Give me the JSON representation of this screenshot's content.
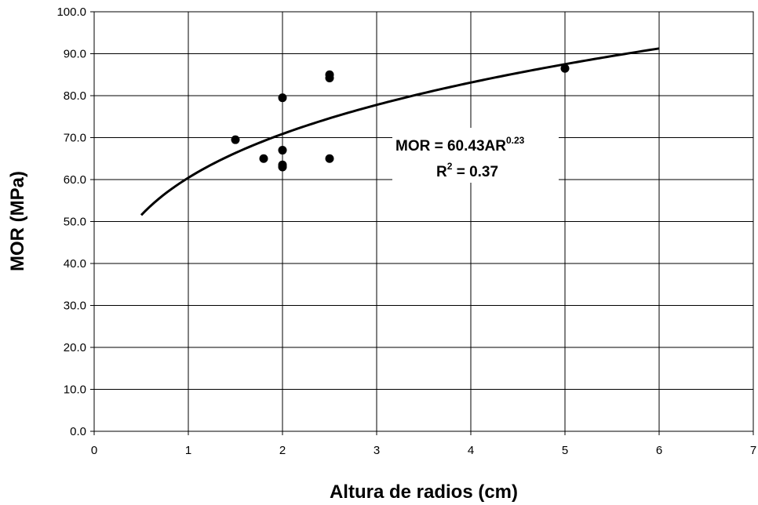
{
  "chart_data": {
    "type": "scatter",
    "title": "",
    "xlabel": "Altura de radios (cm)",
    "ylabel": "MOR (MPa)",
    "xlim": [
      0,
      7
    ],
    "ylim": [
      0,
      100
    ],
    "x_ticks": [
      "0",
      "1",
      "2",
      "3",
      "4",
      "5",
      "6",
      "7"
    ],
    "y_ticks": [
      "0.0",
      "10.0",
      "20.0",
      "30.0",
      "40.0",
      "50.0",
      "60.0",
      "70.0",
      "80.0",
      "90.0",
      "100.0"
    ],
    "grid": true,
    "legend": "none",
    "series": [
      {
        "type": "scatter",
        "marker_color": "#000000",
        "x": [
          1.5,
          1.8,
          2.0,
          2.0,
          2.0,
          2.0,
          2.5,
          2.5,
          2.5,
          5.0
        ],
        "y": [
          69.5,
          65.0,
          63.5,
          63.0,
          67.0,
          79.5,
          85.0,
          84.2,
          65.0,
          86.5
        ]
      }
    ],
    "trendline": {
      "model": "power",
      "a": 60.43,
      "b": 0.23,
      "x_range": [
        0.5,
        6.0
      ],
      "color": "#000000"
    },
    "annotation": {
      "equation_main": "MOR = 60.43AR",
      "equation_exponent": "0.23",
      "r2_prefix": "R",
      "r2_exponent": "2",
      "r2_value": " = 0.37"
    }
  }
}
